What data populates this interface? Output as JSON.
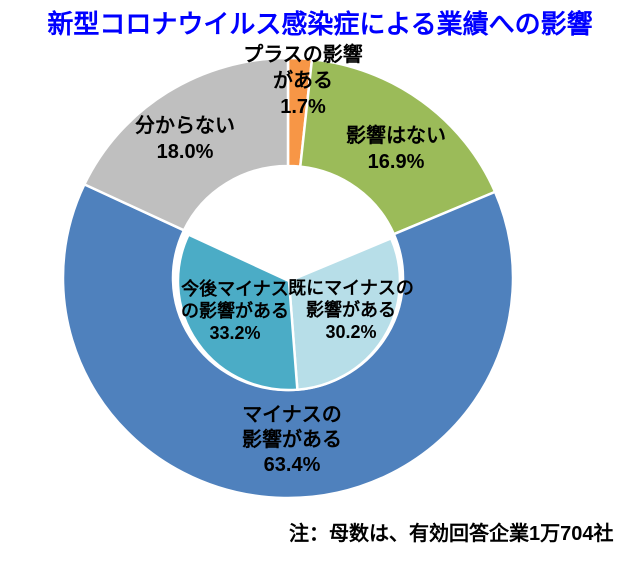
{
  "title": "新型コロナウイルス感染症による業績への影響",
  "note": "注：母数は、有効回答企業1万704社",
  "chart_data": {
    "type": "pie",
    "subtype": "nested-donut",
    "title": "新型コロナウイルス感染症による業績への影響",
    "units": "percent",
    "direction": "clockwise",
    "start_angle_deg": 0,
    "outer_ring": {
      "segments": [
        {
          "label": "プラスの影響がある",
          "value": 1.7,
          "color": "#F79646"
        },
        {
          "label": "影響はない",
          "value": 16.9,
          "color": "#9BBB59"
        },
        {
          "label": "マイナスの影響がある",
          "value": 63.4,
          "color": "#4F81BD"
        },
        {
          "label": "分からない",
          "value": 18.0,
          "color": "#BFBFBF"
        }
      ]
    },
    "inner_pie": {
      "align_with_outer_index": 2,
      "segments": [
        {
          "label": "既にマイナスの影響がある",
          "value": 30.2,
          "color": "#B7DEE8"
        },
        {
          "label": "今後マイナスの影響がある",
          "value": 33.2,
          "color": "#4BACC6"
        }
      ]
    }
  },
  "callouts": {
    "plus": {
      "line1": "プラスの影響",
      "line2": "がある",
      "pct": "1.7%"
    },
    "none": {
      "line1": "影響はない",
      "pct": "16.9%"
    },
    "unknown": {
      "line1": "分からない",
      "pct": "18.0%"
    },
    "minus": {
      "line1": "マイナスの",
      "line2": "影響がある",
      "pct": "63.4%"
    },
    "already": {
      "line1": "既にマイナスの",
      "line2": "影響がある",
      "pct": "30.2%"
    },
    "future": {
      "line1": "今後マイナス",
      "line2": "の影響がある",
      "pct": "33.2%"
    }
  }
}
